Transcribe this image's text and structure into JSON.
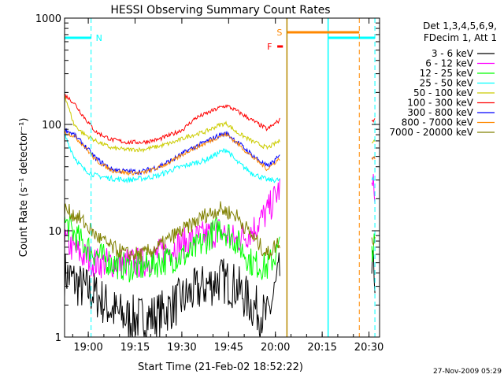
{
  "chart_data": {
    "type": "line",
    "title": "HESSI Observing Summary Count Rates",
    "xlabel": "Start Time (21-Feb-02 18:52:22)",
    "ylabel": "Count Rate (s⁻¹ detector⁻¹)",
    "yscale": "log",
    "ylim": [
      1,
      1000
    ],
    "xlim_minutes": [
      0,
      101
    ],
    "x_ticks": [
      {
        "label": "19:00",
        "minute": 7.6
      },
      {
        "label": "19:15",
        "minute": 22.6
      },
      {
        "label": "19:30",
        "minute": 37.6
      },
      {
        "label": "19:45",
        "minute": 52.6
      },
      {
        "label": "20:00",
        "minute": 67.6
      },
      {
        "label": "20:15",
        "minute": 82.6
      },
      {
        "label": "20:30",
        "minute": 97.6
      }
    ],
    "y_ticks": [
      {
        "label": "1",
        "value": 1
      },
      {
        "label": "10",
        "value": 10
      },
      {
        "label": "100",
        "value": 100
      },
      {
        "label": "1000",
        "value": 1000
      }
    ],
    "legend_header": [
      "Det 1,3,4,5,6,9,",
      "FDecim 1, Att 1"
    ],
    "legend_position": "right",
    "series": [
      {
        "name": "3 - 6 keV",
        "color": "#000000",
        "x": [
          0,
          5,
          10,
          15,
          20,
          25,
          30,
          35,
          40,
          45,
          50,
          55,
          60,
          65,
          69
        ],
        "values": [
          4,
          3,
          2.5,
          1.8,
          1.5,
          1.5,
          1.6,
          2,
          2.5,
          3,
          3.5,
          3,
          2,
          1.5,
          4
        ]
      },
      {
        "name": "6 - 12 keV",
        "color": "#ff00ff",
        "x": [
          0,
          5,
          10,
          15,
          20,
          25,
          30,
          35,
          40,
          45,
          50,
          55,
          60,
          65,
          69
        ],
        "values": [
          8,
          6,
          5,
          5,
          5,
          5,
          6,
          7,
          8,
          9,
          10,
          8,
          10,
          15,
          25
        ]
      },
      {
        "name": "12 - 25 keV",
        "color": "#00ff00",
        "x": [
          0,
          5,
          10,
          15,
          20,
          25,
          30,
          35,
          40,
          45,
          50,
          55,
          60,
          65,
          69
        ],
        "values": [
          12,
          8,
          6,
          5,
          4.5,
          4.5,
          5,
          5.5,
          6,
          8,
          11,
          8,
          5,
          4.5,
          7
        ]
      },
      {
        "name": "25 - 50 keV",
        "color": "#00ffff",
        "x": [
          0,
          3,
          6,
          10,
          15,
          20,
          25,
          30,
          35,
          40,
          45,
          50,
          52,
          55,
          60,
          65,
          69
        ],
        "values": [
          80,
          50,
          38,
          33,
          31,
          30,
          31,
          33,
          38,
          42,
          46,
          55,
          58,
          45,
          35,
          30,
          30
        ]
      },
      {
        "name": "50 - 100 keV",
        "color": "#cccc00",
        "x": [
          0,
          3,
          6,
          10,
          15,
          20,
          25,
          30,
          35,
          40,
          45,
          50,
          52,
          55,
          60,
          65,
          69
        ],
        "values": [
          190,
          100,
          82,
          70,
          60,
          58,
          58,
          62,
          68,
          78,
          85,
          100,
          102,
          85,
          70,
          60,
          70
        ]
      },
      {
        "name": "100 - 300 keV",
        "color": "#ff0000",
        "x": [
          0,
          3,
          6,
          10,
          15,
          20,
          25,
          30,
          35,
          38,
          42,
          45,
          50,
          52,
          55,
          60,
          65,
          69
        ],
        "values": [
          190,
          160,
          120,
          85,
          72,
          68,
          68,
          72,
          82,
          90,
          115,
          125,
          145,
          150,
          135,
          110,
          90,
          110
        ]
      },
      {
        "name": "300 - 800 keV",
        "color": "#0000ff",
        "x": [
          0,
          3,
          6,
          10,
          15,
          20,
          25,
          30,
          35,
          40,
          45,
          50,
          52,
          55,
          60,
          65,
          69
        ],
        "values": [
          90,
          80,
          65,
          48,
          38,
          36,
          36,
          40,
          47,
          58,
          68,
          80,
          82,
          70,
          52,
          40,
          50
        ]
      },
      {
        "name": "800 - 7000 keV",
        "color": "#ff8800",
        "x": [
          0,
          3,
          6,
          10,
          15,
          20,
          25,
          30,
          35,
          40,
          45,
          50,
          52,
          55,
          60,
          65,
          69
        ],
        "values": [
          85,
          78,
          64,
          46,
          37,
          35,
          35,
          39,
          46,
          57,
          66,
          78,
          80,
          68,
          50,
          38,
          48
        ]
      },
      {
        "name": "7000 - 20000 keV",
        "color": "#808000",
        "x": [
          0,
          5,
          10,
          15,
          20,
          25,
          30,
          35,
          40,
          45,
          50,
          55,
          60,
          65,
          69
        ],
        "values": [
          16,
          13,
          9,
          7,
          6,
          6,
          7,
          9,
          11,
          14,
          16,
          14,
          9,
          6,
          8
        ]
      }
    ],
    "annotations": [
      {
        "label": "N",
        "color": "#00ffff"
      },
      {
        "label": "S",
        "color": "#ff8800"
      },
      {
        "label": "F",
        "color": "#ff0000"
      }
    ],
    "footer_date": "27-Nov-2009 05:29"
  }
}
